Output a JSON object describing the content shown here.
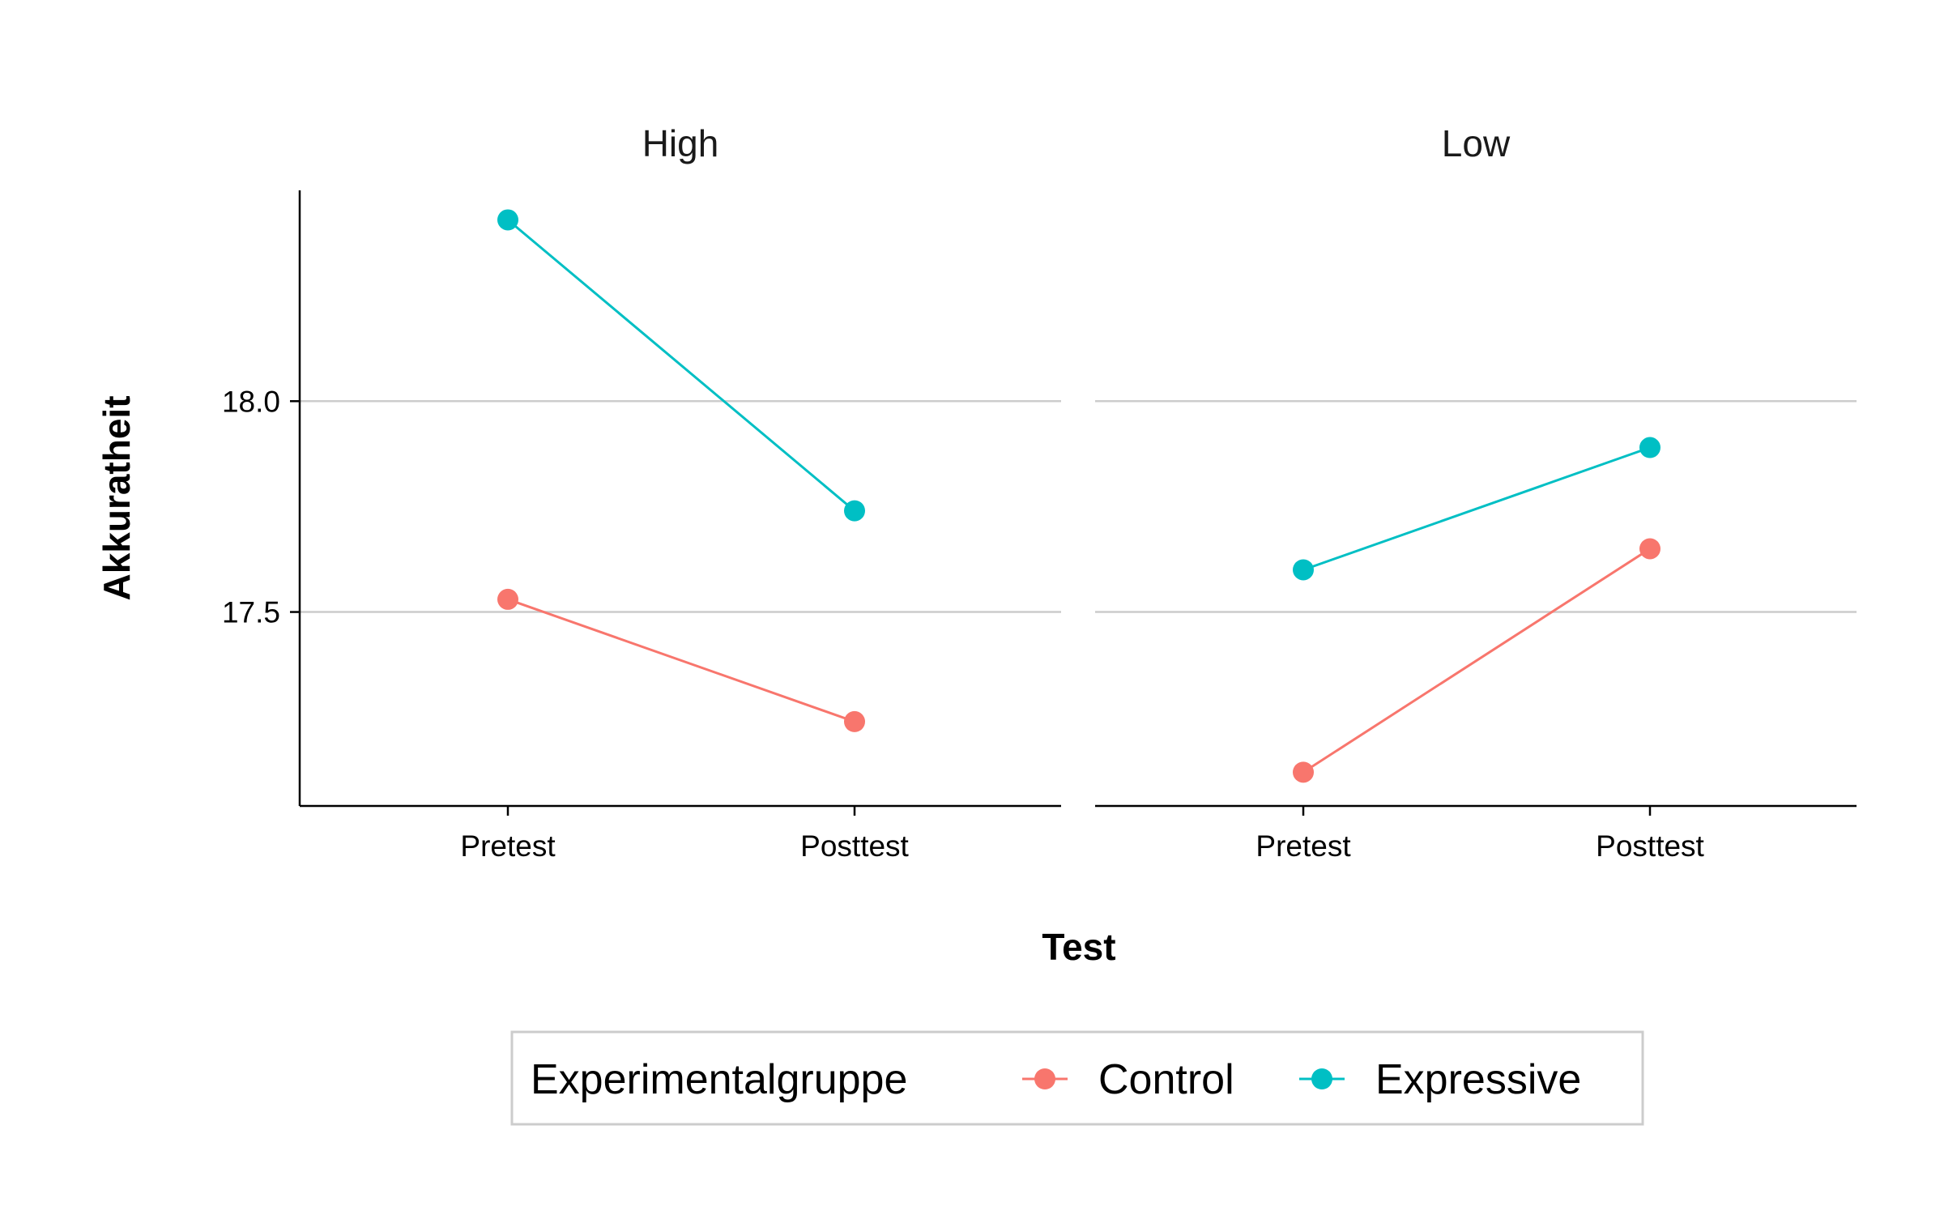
{
  "chart_data": {
    "type": "line",
    "facets": [
      "High",
      "Low"
    ],
    "categories": [
      "Pretest",
      "Posttest"
    ],
    "series": [
      {
        "name": "Control",
        "color": "#F8766D",
        "values": {
          "High": [
            17.53,
            17.24
          ],
          "Low": [
            17.12,
            17.65
          ]
        }
      },
      {
        "name": "Expressive",
        "color": "#00BFC4",
        "values": {
          "High": [
            18.43,
            17.74
          ],
          "Low": [
            17.6,
            17.89
          ]
        }
      }
    ],
    "xlabel": "Test",
    "ylabel": "Akkuratheit",
    "ylim": [
      17.04,
      18.5
    ],
    "yticks": [
      17.5,
      18.0
    ],
    "ytick_labels": [
      "17.5",
      "18.0"
    ],
    "grid": "horizontal",
    "legend": {
      "title": "Experimentalgruppe",
      "position": "bottom"
    }
  }
}
